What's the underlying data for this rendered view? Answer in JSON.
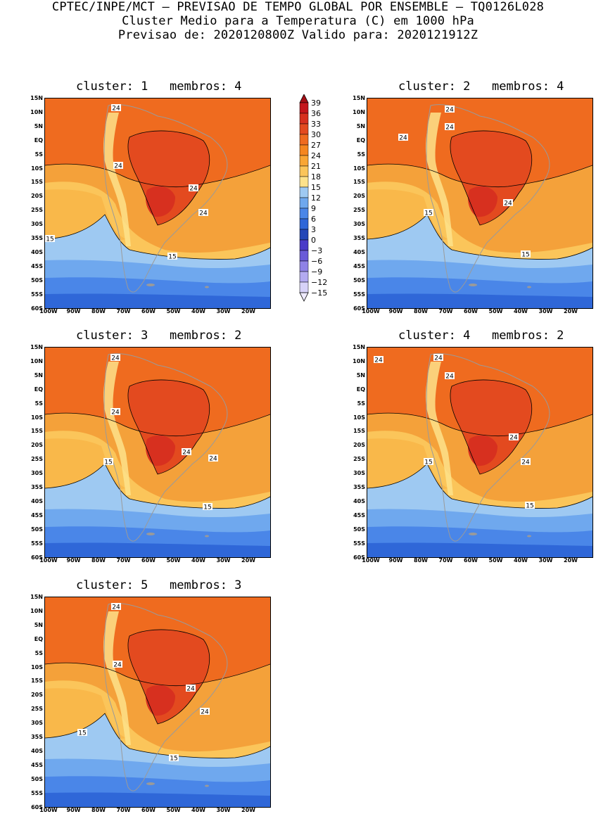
{
  "header": {
    "line1": "CPTEC/INPE/MCT — PREVISAO DE TEMPO GLOBAL POR ENSEMBLE — TQ0126L028",
    "line2": "Cluster Medio para a Temperatura (C) em 1000 hPa",
    "line3": "Previsao de: 2020120800Z   Valido para: 2020121912Z"
  },
  "axes": {
    "y_ticks": [
      "15N",
      "10N",
      "5N",
      "EQ",
      "5S",
      "10S",
      "15S",
      "20S",
      "25S",
      "30S",
      "35S",
      "40S",
      "45S",
      "50S",
      "55S",
      "60S"
    ],
    "x_ticks": [
      "100W",
      "90W",
      "80W",
      "70W",
      "60W",
      "50W",
      "40W",
      "30W",
      "20W"
    ]
  },
  "colorbar": {
    "labels": [
      "39",
      "36",
      "33",
      "30",
      "27",
      "24",
      "21",
      "18",
      "15",
      "12",
      "9",
      "6",
      "3",
      "0",
      "−3",
      "−6",
      "−9",
      "−12",
      "−15"
    ],
    "colors": [
      "#a50f15",
      "#c4161c",
      "#d7301f",
      "#e34a1f",
      "#ef6b1f",
      "#f5861f",
      "#f9a634",
      "#fbc55a",
      "#fde28b",
      "#9ec9f2",
      "#6fa8ee",
      "#4a86e8",
      "#2f67d8",
      "#2447b8",
      "#4a3ac8",
      "#6a5ad8",
      "#8f82e6",
      "#b3aaf0",
      "#d7d2f8",
      "#eeeaff"
    ]
  },
  "panels": [
    {
      "title": "cluster: 1   membros: 4",
      "labels_24": [
        "24",
        "24",
        "24",
        "24"
      ],
      "labels_15": [
        "15",
        "15"
      ]
    },
    {
      "title": "cluster: 2   membros: 4",
      "labels_24": [
        "24",
        "24",
        "24",
        "24"
      ],
      "labels_15": [
        "15",
        "15"
      ]
    },
    {
      "title": "cluster: 3   membros: 2",
      "labels_24": [
        "24",
        "24",
        "24",
        "24"
      ],
      "labels_15": [
        "15",
        "15"
      ]
    },
    {
      "title": "cluster: 4   membros: 2",
      "labels_24": [
        "24",
        "24",
        "24",
        "24",
        "24"
      ],
      "labels_15": [
        "15",
        "15"
      ]
    },
    {
      "title": "cluster: 5   membros: 3",
      "labels_24": [
        "24",
        "24",
        "24",
        "24"
      ],
      "labels_15": [
        "15",
        "15"
      ]
    }
  ]
}
